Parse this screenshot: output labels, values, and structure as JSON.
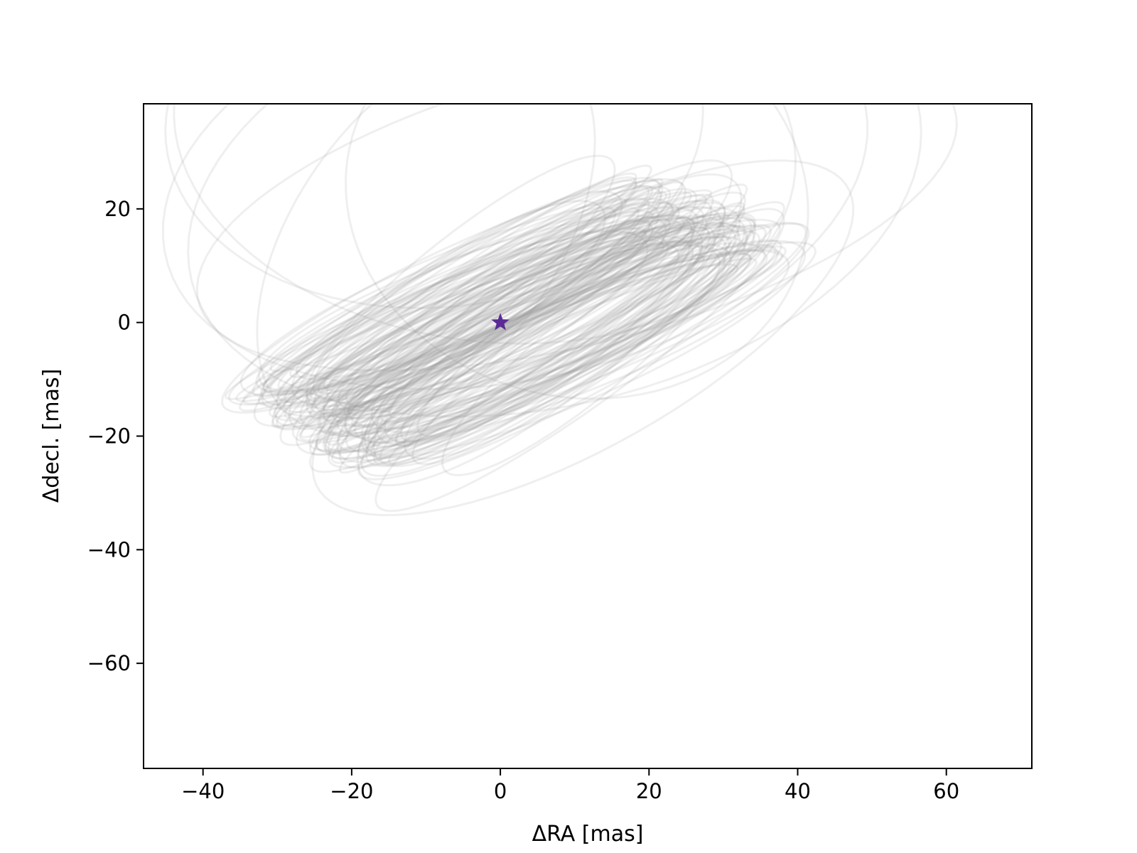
{
  "chart_data": {
    "type": "line",
    "title": "",
    "xlabel": "ΔRA [mas]",
    "ylabel": "Δdecl. [mas]",
    "xlim": [
      -48,
      71.5
    ],
    "ylim": [
      -78.5,
      38.5
    ],
    "x_ticks": [
      -40,
      -20,
      0,
      20,
      40,
      60
    ],
    "x_tick_labels": [
      "−40",
      "−20",
      "0",
      "20",
      "40",
      "60"
    ],
    "y_ticks": [
      20,
      0,
      -20,
      -40,
      -60
    ],
    "y_tick_labels": [
      "20",
      "0",
      "−20",
      "−40",
      "−60"
    ],
    "grid": false,
    "legend": "none",
    "line_color": "#999999",
    "line_opacity": 0.16,
    "star": {
      "x": 0,
      "y": 0,
      "color": "#5b2a96",
      "marker": "star"
    },
    "series": [
      {
        "orbit": [
          11.1,
          2.7,
          44.6,
          17.6,
          -39,
          1
        ]
      },
      {
        "orbit": [
          10.3,
          -20.4,
          23.7,
          53.7,
          -110,
          2
        ]
      },
      {
        "orbit": [
          7.3,
          -23.0,
          36.4,
          51.7,
          -115,
          3
        ]
      },
      {
        "orbit": [
          2.0,
          -25.1,
          34.4,
          49.2,
          -112,
          4
        ]
      },
      {
        "orbit": [
          10.3,
          -22.0,
          35.7,
          30.8,
          -104,
          5
        ]
      },
      {
        "orbit": [
          -2.1,
          -32.6,
          35.4,
          42.6,
          -70,
          6
        ]
      },
      {
        "orbit": [
          -8.9,
          -35.5,
          32.7,
          36.4,
          -105,
          7
        ]
      },
      {
        "orbit": [
          -10.0,
          -15.1,
          37.1,
          18.6,
          -66,
          8
        ]
      },
      {
        "orbit": [
          9.0,
          4.0,
          38.0,
          7.1,
          -33,
          9
        ]
      },
      {
        "orbit": [
          6.6,
          1.3,
          36.1,
          10.6,
          -47,
          10
        ]
      },
      {
        "orbit": [
          3.7,
          0.1,
          37.9,
          6.6,
          -27,
          11
        ]
      },
      {
        "orbit": [
          4.4,
          1.5,
          36.1,
          5.0,
          -22,
          12
        ]
      },
      {
        "orbit": [
          -4.4,
          -4.5,
          32.3,
          6.6,
          -29,
          13
        ]
      },
      {
        "orbit": [
          3.7,
          3.2,
          27.8,
          4.4,
          -32,
          14
        ]
      },
      {
        "orbit": [
          -1.5,
          -0.7,
          29.6,
          6.6,
          -41,
          15
        ]
      },
      {
        "orbit": [
          9.4,
          2.4,
          28.0,
          4.2,
          -30,
          16
        ]
      },
      {
        "orbit": [
          -4.4,
          -4.7,
          26.8,
          7.1,
          -41,
          17
        ]
      },
      {
        "orbit": [
          11.3,
          5.9,
          27.6,
          6.6,
          -48,
          18
        ]
      },
      {
        "orbit": [
          -1.5,
          0.9,
          28.4,
          4.0,
          -41,
          19
        ]
      },
      {
        "orbit": [
          5.1,
          2.6,
          35.0,
          7.3,
          -36,
          20
        ]
      },
      {
        "orbit": [
          -6.5,
          -5.3,
          31.7,
          7.3,
          -48,
          21
        ]
      },
      {
        "orbit": [
          6.9,
          0.7,
          34.6,
          6.0,
          -42,
          22
        ]
      },
      {
        "orbit": [
          4.6,
          -2.0,
          36.5,
          8.7,
          -45,
          23
        ]
      },
      {
        "orbit": [
          3.9,
          0.5,
          32.0,
          7.6,
          -31,
          24
        ]
      },
      {
        "orbit": [
          -4.0,
          -1.0,
          29.5,
          5.3,
          -29,
          25
        ]
      },
      {
        "orbit": [
          8.5,
          1.6,
          26.3,
          5.8,
          -43,
          26
        ]
      },
      {
        "orbit": [
          -3.9,
          -1.7,
          34.1,
          6.2,
          -42,
          27
        ]
      },
      {
        "orbit": [
          5.1,
          2.1,
          35.5,
          4.6,
          -39,
          28
        ]
      },
      {
        "orbit": [
          -5.2,
          -4.6,
          34.1,
          4.0,
          -42,
          29
        ]
      },
      {
        "orbit": [
          -0.4,
          -0.5,
          26.5,
          6.2,
          -31,
          30
        ]
      },
      {
        "orbit": [
          7.2,
          1.0,
          28.1,
          5.3,
          -44,
          31
        ]
      },
      {
        "orbit": [
          -7.0,
          -6.6,
          28.1,
          3.4,
          -32,
          32
        ]
      },
      {
        "orbit": [
          6.1,
          2.0,
          28.9,
          8.1,
          -40,
          33
        ]
      },
      {
        "orbit": [
          10.7,
          6.6,
          37.5,
          7.4,
          -44,
          34
        ]
      },
      {
        "orbit": [
          -5.8,
          -7.3,
          30.4,
          3.6,
          -38,
          35
        ]
      },
      {
        "orbit": [
          6.5,
          2.1,
          32.4,
          7.2,
          -27,
          36
        ]
      },
      {
        "orbit": [
          7.6,
          -0.4,
          34.7,
          4.4,
          -43,
          37
        ]
      },
      {
        "orbit": [
          -4.3,
          -4.9,
          37.3,
          3.7,
          -29,
          38
        ]
      },
      {
        "orbit": [
          3.0,
          1.4,
          30.9,
          8.2,
          -26,
          39
        ]
      },
      {
        "orbit": [
          -2.8,
          -5.2,
          29.1,
          4.1,
          -39,
          40
        ]
      },
      {
        "orbit": [
          6.1,
          2.9,
          27.4,
          8.2,
          -33,
          41
        ]
      },
      {
        "orbit": [
          1.9,
          -0.6,
          36.4,
          5.8,
          -28,
          42
        ]
      },
      {
        "orbit": [
          -5.3,
          -3.7,
          32.5,
          4.3,
          -38,
          43
        ]
      },
      {
        "orbit": [
          -7.5,
          -6.0,
          31.7,
          4.6,
          -36,
          44
        ]
      },
      {
        "orbit": [
          11.0,
          1.8,
          35.2,
          5.3,
          -40,
          45
        ]
      },
      {
        "orbit": [
          1.5,
          -0.5,
          34.9,
          8.4,
          -26,
          46
        ]
      },
      {
        "orbit": [
          5.7,
          1.5,
          31.4,
          8.0,
          -42,
          47
        ]
      },
      {
        "orbit": [
          4.4,
          3.2,
          29.6,
          8.4,
          -46,
          48
        ]
      },
      {
        "orbit": [
          5.7,
          3.0,
          29.1,
          3.9,
          -26,
          49
        ]
      },
      {
        "orbit": [
          7.1,
          4.3,
          33.5,
          7.5,
          -41,
          50
        ]
      },
      {
        "orbit": [
          -2.5,
          -2.1,
          26.1,
          3.8,
          -33,
          51
        ]
      },
      {
        "orbit": [
          -4.4,
          -1.4,
          33.8,
          3.8,
          -27,
          52
        ]
      },
      {
        "orbit": [
          4.9,
          2.5,
          28.8,
          8.5,
          -30,
          53
        ]
      },
      {
        "orbit": [
          -5.8,
          -4.5,
          33.0,
          7.6,
          -29,
          54
        ]
      },
      {
        "orbit": [
          -0.5,
          0.1,
          32.8,
          4.3,
          -30,
          55
        ]
      },
      {
        "orbit": [
          -4.3,
          -5.4,
          31.7,
          3.5,
          -33,
          56
        ]
      },
      {
        "orbit": [
          10.7,
          2.5,
          31.0,
          7.6,
          -42,
          57
        ]
      },
      {
        "orbit": [
          6.5,
          3.6,
          33.1,
          5.8,
          -28,
          58
        ]
      },
      {
        "orbit": [
          -3.6,
          -3.0,
          31.9,
          5.2,
          -28,
          59
        ]
      },
      {
        "orbit": [
          2.1,
          1.8,
          32.9,
          6.7,
          -41,
          60
        ]
      },
      {
        "orbit": [
          2.5,
          2.7,
          28.3,
          8.0,
          -36,
          61
        ]
      },
      {
        "orbit": [
          -1.8,
          -1.7,
          27.2,
          4.1,
          -42,
          62
        ]
      },
      {
        "orbit": [
          -0.4,
          -0.2,
          31.6,
          7.3,
          -34,
          63
        ]
      },
      {
        "orbit": [
          -4.6,
          -3.3,
          33.5,
          6.7,
          -40,
          64
        ]
      },
      {
        "orbit": [
          9.8,
          4.8,
          28.9,
          4.6,
          -35,
          65
        ]
      },
      {
        "orbit": [
          11.0,
          5.9,
          32.0,
          3.9,
          -36,
          66
        ]
      },
      {
        "orbit": [
          2.8,
          0.7,
          32.5,
          7.9,
          -34,
          67
        ]
      },
      {
        "orbit": [
          -5.8,
          -1.4,
          30.4,
          6.2,
          -31,
          68
        ]
      },
      {
        "orbit": [
          9.2,
          3.1,
          28.8,
          3.7,
          -29,
          69
        ]
      },
      {
        "orbit": [
          2.4,
          1.5,
          35.9,
          8.5,
          -35,
          70
        ]
      },
      {
        "orbit": [
          -4.1,
          -3.5,
          35.4,
          7.7,
          -36,
          71
        ]
      },
      {
        "orbit": [
          5.1,
          2.6,
          32.9,
          6.8,
          -36,
          72
        ]
      },
      {
        "orbit": [
          6.0,
          2.3,
          27.3,
          3.2,
          -43,
          73
        ]
      },
      {
        "orbit": [
          3.1,
          1.3,
          28.2,
          5.5,
          -32,
          74
        ]
      },
      {
        "orbit": [
          6.7,
          2.9,
          33.1,
          7.3,
          -35,
          75
        ]
      },
      {
        "orbit": [
          5.0,
          2.7,
          36.0,
          6.1,
          -32,
          76
        ]
      },
      {
        "orbit": [
          -2.5,
          -2.5,
          33.1,
          3.2,
          -43,
          77
        ]
      },
      {
        "orbit": [
          -6.1,
          -1.8,
          34.0,
          5.7,
          -27,
          78
        ]
      },
      {
        "orbit": [
          11.2,
          5.1,
          37.1,
          6.9,
          -36,
          79
        ]
      },
      {
        "orbit": [
          -2.8,
          -2.8,
          33.3,
          7.6,
          -29,
          80
        ]
      },
      {
        "orbit": [
          7.7,
          2.9,
          33.4,
          6.1,
          -28,
          81
        ]
      },
      {
        "orbit": [
          3.2,
          0.9,
          36.4,
          7.3,
          -32,
          82
        ]
      },
      {
        "orbit": [
          -5.3,
          -3.2,
          26.4,
          4.9,
          -39,
          83
        ]
      },
      {
        "orbit": [
          -3.9,
          -3.3,
          26.5,
          5.2,
          -28,
          84
        ]
      },
      {
        "orbit": [
          -2.8,
          -2.4,
          29.5,
          4.6,
          -40,
          85
        ]
      },
      {
        "orbit": [
          9.4,
          4.3,
          37.2,
          6.6,
          -28,
          86
        ]
      },
      {
        "orbit": [
          -5.0,
          -3.1,
          26.3,
          3.4,
          -28,
          87
        ]
      },
      {
        "orbit": [
          -1.1,
          -2.5,
          30.1,
          4.9,
          -37,
          88
        ]
      },
      {
        "orbit": [
          4.3,
          2.0,
          34.2,
          7.5,
          -42,
          89
        ]
      },
      {
        "orbit": [
          5.7,
          3.7,
          36.6,
          4.6,
          -27,
          90
        ]
      },
      {
        "orbit": [
          -5.1,
          -3.4,
          30.5,
          7.6,
          -27,
          91
        ]
      },
      {
        "orbit": [
          -7.9,
          -4.1,
          34.9,
          7.3,
          -33,
          92
        ]
      },
      {
        "orbit": [
          6.5,
          3.1,
          31.7,
          5.5,
          -43,
          93
        ]
      },
      {
        "orbit": [
          0.6,
          -1.6,
          33.0,
          4.1,
          -44,
          94
        ]
      },
      {
        "orbit": [
          -4.1,
          -0.7,
          27.2,
          8.3,
          -30,
          95
        ]
      },
      {
        "orbit": [
          6.5,
          4.1,
          36.0,
          5.3,
          -30,
          96
        ]
      },
      {
        "orbit": [
          -2.4,
          -2.6,
          36.8,
          3.6,
          -26,
          97
        ]
      },
      {
        "orbit": [
          5.6,
          2.7,
          35.9,
          3.7,
          -41,
          98
        ]
      },
      {
        "orbit": [
          -7.1,
          -5.5,
          32.0,
          4.6,
          -38,
          99
        ]
      },
      {
        "orbit": [
          -6.0,
          -3.0,
          26.1,
          7.8,
          -42,
          100
        ]
      },
      {
        "orbit": [
          3.6,
          1.1,
          31.6,
          4.1,
          -30,
          101
        ]
      },
      {
        "orbit": [
          -1.6,
          -3.8,
          31.1,
          5.5,
          -39,
          102
        ]
      },
      {
        "orbit": [
          11.2,
          4.7,
          34.4,
          8.1,
          -31,
          103
        ]
      },
      {
        "orbit": [
          2.3,
          0.8,
          33.6,
          6.6,
          -40,
          104
        ]
      },
      {
        "orbit": [
          7.6,
          4.1,
          32.5,
          7.1,
          -39,
          105
        ]
      },
      {
        "orbit": [
          9.6,
          4.3,
          32.8,
          7.9,
          -28,
          106
        ]
      },
      {
        "orbit": [
          -1.5,
          -2.1,
          31.6,
          5.0,
          -30,
          107
        ]
      },
      {
        "orbit": [
          5.8,
          2.2,
          27.5,
          7.6,
          -41,
          108
        ]
      },
      {
        "orbit": [
          1.5,
          0.4,
          35.1,
          5.2,
          -40,
          109
        ]
      },
      {
        "orbit": [
          -4.7,
          -3.7,
          35.7,
          4.1,
          -32,
          110
        ]
      },
      {
        "orbit": [
          1.7,
          0.6,
          27.6,
          5.1,
          -31,
          111
        ]
      },
      {
        "orbit": [
          -2.8,
          -2.3,
          28.6,
          5.0,
          -36,
          112
        ]
      },
      {
        "orbit": [
          -0.9,
          -1.2,
          26.0,
          4.7,
          -29,
          113
        ]
      },
      {
        "orbit": [
          3.1,
          0.3,
          27.3,
          5.8,
          -30,
          114
        ]
      },
      {
        "orbit": [
          -2.8,
          -3.0,
          32.5,
          4.9,
          -27,
          115
        ]
      },
      {
        "orbit": [
          9.5,
          3.4,
          33.4,
          5.3,
          -37,
          116
        ]
      },
      {
        "orbit": [
          6.5,
          3.1,
          30.0,
          6.3,
          -37,
          117
        ]
      },
      {
        "orbit": [
          1.1,
          0.8,
          26.4,
          6.6,
          -31,
          118
        ]
      },
      {
        "orbit": [
          8.1,
          2.5,
          32.0,
          6.2,
          -34,
          119
        ]
      },
      {
        "orbit": [
          6.0,
          2.6,
          31.4,
          7.0,
          -32,
          120
        ]
      },
      {
        "orbit": [
          2.3,
          2.6,
          36.0,
          6.7,
          -40,
          121
        ]
      },
      {
        "orbit": [
          0.8,
          -0.3,
          33.9,
          6.5,
          -42,
          122
        ]
      },
      {
        "orbit": [
          10.2,
          4.3,
          29.6,
          5.8,
          -43,
          123
        ]
      },
      {
        "orbit": [
          -0.5,
          -1.2,
          28.5,
          5.7,
          -36,
          124
        ]
      },
      {
        "orbit": [
          -1.2,
          -1.9,
          35.1,
          4.7,
          -35,
          125
        ]
      }
    ]
  }
}
